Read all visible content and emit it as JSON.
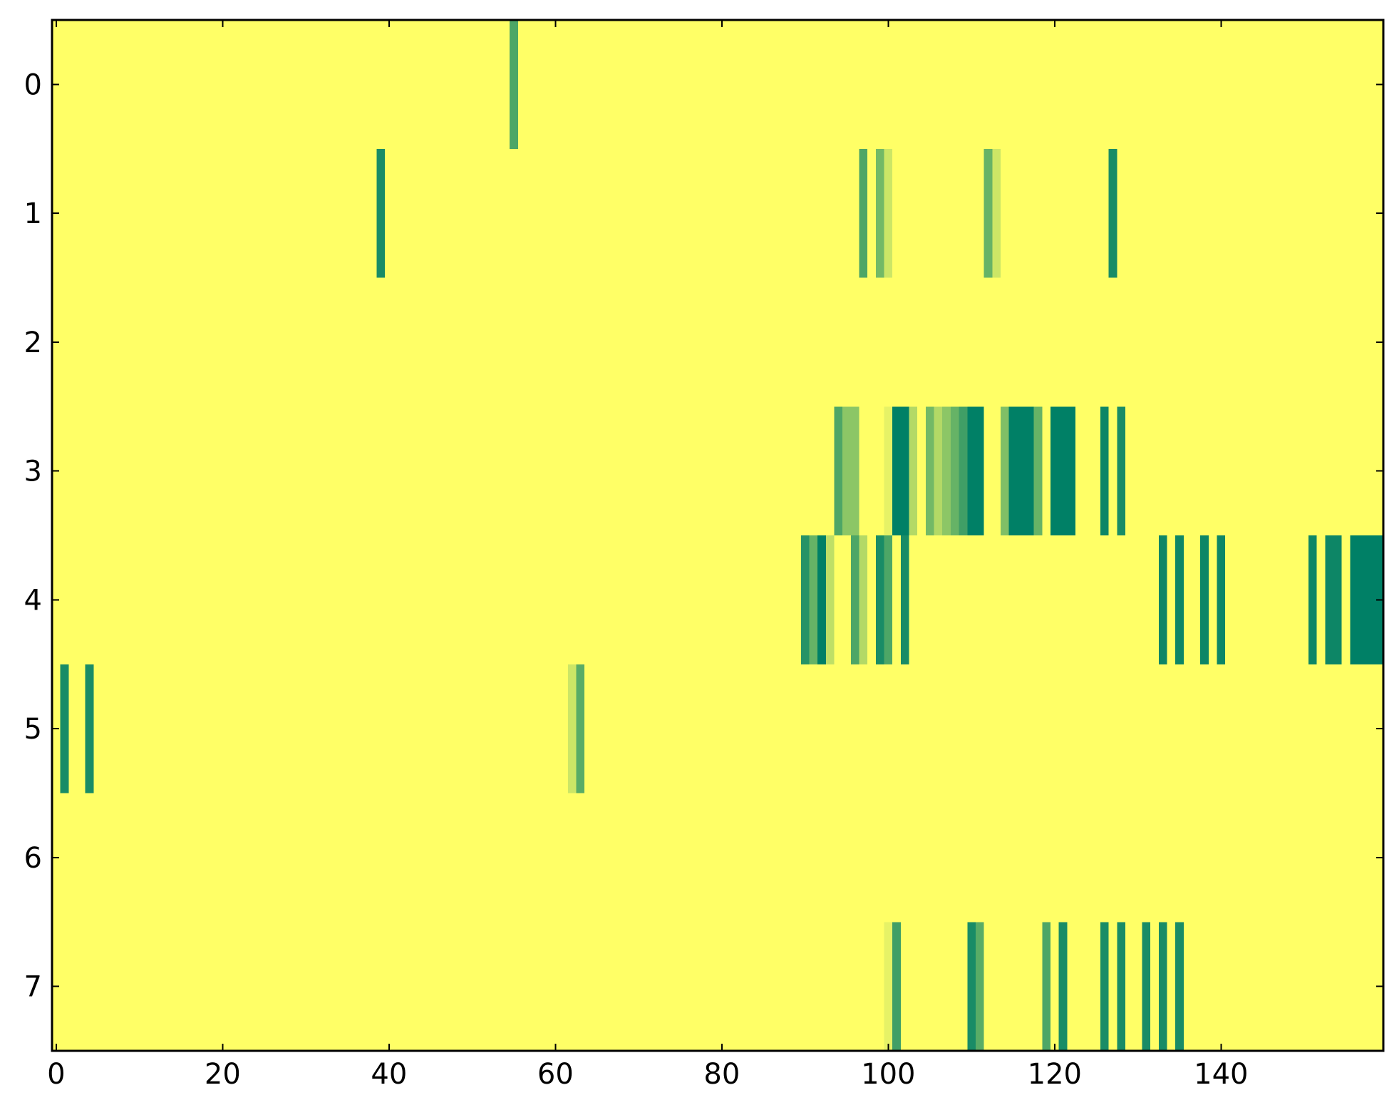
{
  "chart_data": {
    "type": "heatmap",
    "colormap": "summer_r",
    "xlim": [
      -0.5,
      159.5
    ],
    "ylim": [
      7.5,
      -0.5
    ],
    "xticks": [
      0,
      20,
      40,
      60,
      80,
      100,
      120,
      140
    ],
    "yticks": [
      0,
      1,
      2,
      3,
      4,
      5,
      6,
      7
    ],
    "z": [
      [
        0,
        0,
        0,
        0,
        0,
        0,
        0,
        0,
        0,
        0,
        0,
        0,
        0,
        0,
        0,
        0,
        0,
        0,
        0,
        0,
        0,
        0,
        0,
        0,
        0,
        0,
        0,
        0,
        0,
        0,
        0,
        0,
        0,
        0,
        0,
        0,
        0,
        0,
        0,
        0,
        0,
        0,
        0,
        0,
        0,
        0,
        0,
        0,
        0,
        0,
        0,
        0,
        0,
        0,
        0,
        0.7,
        0,
        0,
        0,
        0,
        0,
        0,
        0,
        0,
        0,
        0,
        0,
        0,
        0,
        0,
        0,
        0,
        0,
        0,
        0,
        0,
        0,
        0,
        0,
        0,
        0,
        0,
        0,
        0,
        0,
        0,
        0,
        0,
        0,
        0,
        0,
        0,
        0,
        0,
        0,
        0,
        0,
        0,
        0,
        0,
        0,
        0,
        0,
        0,
        0,
        0,
        0,
        0,
        0,
        0,
        0,
        0,
        0,
        0,
        0,
        0,
        0,
        0,
        0,
        0,
        0,
        0,
        0,
        0,
        0,
        0,
        0,
        0,
        0,
        0,
        0,
        0,
        0,
        0,
        0,
        0,
        0,
        0,
        0,
        0,
        0,
        0,
        0,
        0,
        0,
        0,
        0,
        0,
        0,
        0,
        0,
        0,
        0,
        0,
        0,
        0,
        0,
        0,
        0,
        0
      ],
      [
        0,
        0,
        0,
        0,
        0,
        0,
        0,
        0,
        0,
        0,
        0,
        0,
        0,
        0,
        0,
        0,
        0,
        0,
        0,
        0,
        0,
        0,
        0,
        0,
        0,
        0,
        0,
        0,
        0,
        0,
        0,
        0,
        0,
        0,
        0,
        0,
        0,
        0,
        0,
        0.9,
        0,
        0,
        0,
        0,
        0,
        0,
        0,
        0,
        0,
        0,
        0,
        0,
        0,
        0,
        0,
        0,
        0,
        0,
        0,
        0,
        0,
        0,
        0,
        0,
        0,
        0,
        0,
        0,
        0,
        0,
        0,
        0,
        0,
        0,
        0,
        0,
        0,
        0,
        0,
        0,
        0,
        0,
        0,
        0,
        0,
        0,
        0,
        0,
        0,
        0,
        0,
        0,
        0,
        0,
        0,
        0,
        0,
        0.7,
        0,
        0.55,
        0.2,
        0,
        0,
        0,
        0,
        0,
        0,
        0,
        0,
        0,
        0,
        0,
        0.6,
        0.2,
        0,
        0,
        0,
        0,
        0,
        0,
        0,
        0,
        0,
        0,
        0,
        0,
        0,
        0.9,
        0,
        0,
        0,
        0,
        0,
        0,
        0,
        0,
        0,
        0,
        0,
        0,
        0,
        0,
        0,
        0,
        0,
        0,
        0,
        0,
        0,
        0,
        0,
        0,
        0,
        0,
        0,
        0,
        0,
        0,
        0,
        0
      ],
      [
        0,
        0,
        0,
        0,
        0,
        0,
        0,
        0,
        0,
        0,
        0,
        0,
        0,
        0,
        0,
        0,
        0,
        0,
        0,
        0,
        0,
        0,
        0,
        0,
        0,
        0,
        0,
        0,
        0,
        0,
        0,
        0,
        0,
        0,
        0,
        0,
        0,
        0,
        0,
        0,
        0,
        0,
        0,
        0,
        0,
        0,
        0,
        0,
        0,
        0,
        0,
        0,
        0,
        0,
        0,
        0,
        0,
        0,
        0,
        0,
        0,
        0,
        0,
        0,
        0,
        0,
        0,
        0,
        0,
        0,
        0,
        0,
        0,
        0,
        0,
        0,
        0,
        0,
        0,
        0,
        0,
        0,
        0,
        0,
        0,
        0,
        0,
        0,
        0,
        0,
        0,
        0,
        0,
        0,
        0,
        0,
        0,
        0,
        0,
        0,
        0,
        0,
        0,
        0,
        0,
        0,
        0,
        0,
        0,
        0,
        0,
        0,
        0,
        0,
        0,
        0,
        0,
        0,
        0,
        0,
        0,
        0,
        0,
        0,
        0,
        0,
        0,
        0,
        0,
        0,
        0,
        0,
        0,
        0,
        0,
        0,
        0,
        0,
        0,
        0,
        0,
        0,
        0,
        0,
        0,
        0,
        0,
        0,
        0,
        0,
        0,
        0,
        0,
        0,
        0,
        0,
        0,
        0,
        0,
        0
      ],
      [
        0,
        0,
        0,
        0,
        0,
        0,
        0,
        0,
        0,
        0,
        0,
        0,
        0,
        0,
        0,
        0,
        0,
        0,
        0,
        0,
        0,
        0,
        0,
        0,
        0,
        0,
        0,
        0,
        0,
        0,
        0,
        0,
        0,
        0,
        0,
        0,
        0,
        0,
        0,
        0,
        0,
        0,
        0,
        0,
        0,
        0,
        0,
        0,
        0,
        0,
        0,
        0,
        0,
        0,
        0,
        0,
        0,
        0,
        0,
        0,
        0,
        0,
        0,
        0,
        0,
        0,
        0,
        0,
        0,
        0,
        0,
        0,
        0,
        0,
        0,
        0,
        0,
        0,
        0,
        0,
        0,
        0,
        0,
        0,
        0,
        0,
        0,
        0,
        0,
        0,
        0,
        0,
        0,
        0,
        0.7,
        0.45,
        0.45,
        0,
        0,
        0,
        0.1,
        1,
        1,
        0.3,
        0,
        0.55,
        0.3,
        0.45,
        0.6,
        0.75,
        1,
        1,
        0,
        0,
        0.5,
        1,
        1,
        1,
        0.6,
        0,
        1,
        1,
        1,
        0,
        0,
        0,
        0.95,
        0,
        0.9,
        0,
        0,
        0,
        0,
        0,
        0,
        0,
        0,
        0,
        0,
        0,
        0,
        0,
        0,
        0,
        0,
        0,
        0,
        0,
        0,
        0,
        0,
        0,
        0,
        0,
        0,
        0,
        0,
        0,
        0,
        0
      ],
      [
        0,
        0,
        0,
        0,
        0,
        0,
        0,
        0,
        0,
        0,
        0,
        0,
        0,
        0,
        0,
        0,
        0,
        0,
        0,
        0,
        0,
        0,
        0,
        0,
        0,
        0,
        0,
        0,
        0,
        0,
        0,
        0,
        0,
        0,
        0,
        0,
        0,
        0,
        0,
        0,
        0,
        0,
        0,
        0,
        0,
        0,
        0,
        0,
        0,
        0,
        0,
        0,
        0,
        0,
        0,
        0,
        0,
        0,
        0,
        0,
        0,
        0,
        0,
        0,
        0,
        0,
        0,
        0,
        0,
        0,
        0,
        0,
        0,
        0,
        0,
        0,
        0,
        0,
        0,
        0,
        0,
        0,
        0,
        0,
        0,
        0,
        0,
        0,
        0,
        0,
        0.85,
        0.6,
        1,
        0.25,
        0,
        0,
        0.7,
        0.3,
        0,
        0.9,
        0.7,
        0,
        0.9,
        0,
        0,
        0,
        0,
        0,
        0,
        0,
        0,
        0,
        0,
        0,
        0,
        0,
        0,
        0,
        0,
        0,
        0,
        0,
        0,
        0,
        0,
        0,
        0,
        0,
        0,
        0,
        0,
        0,
        0,
        0.95,
        0,
        0.95,
        0,
        0,
        0.95,
        0,
        0.95,
        0,
        0,
        0,
        0,
        0,
        0,
        0,
        0,
        0,
        0,
        0.95,
        0,
        0.95,
        0.95,
        0,
        1,
        1,
        1,
        1
      ],
      [
        0,
        0.9,
        0,
        0,
        0.9,
        0,
        0,
        0,
        0,
        0,
        0,
        0,
        0,
        0,
        0,
        0,
        0,
        0,
        0,
        0,
        0,
        0,
        0,
        0,
        0,
        0,
        0,
        0,
        0,
        0,
        0,
        0,
        0,
        0,
        0,
        0,
        0,
        0,
        0,
        0,
        0,
        0,
        0,
        0,
        0,
        0,
        0,
        0,
        0,
        0,
        0,
        0,
        0,
        0,
        0,
        0,
        0,
        0,
        0,
        0,
        0,
        0,
        0.2,
        0.65,
        0,
        0,
        0,
        0,
        0,
        0,
        0,
        0,
        0,
        0,
        0,
        0,
        0,
        0,
        0,
        0,
        0,
        0,
        0,
        0,
        0,
        0,
        0,
        0,
        0,
        0,
        0,
        0,
        0,
        0,
        0,
        0,
        0,
        0,
        0,
        0,
        0,
        0,
        0,
        0,
        0,
        0,
        0,
        0,
        0,
        0,
        0,
        0,
        0,
        0,
        0,
        0,
        0,
        0,
        0,
        0,
        0,
        0,
        0,
        0,
        0,
        0,
        0,
        0,
        0,
        0,
        0,
        0,
        0,
        0,
        0,
        0,
        0,
        0,
        0,
        0,
        0,
        0,
        0,
        0,
        0,
        0,
        0,
        0,
        0,
        0,
        0,
        0,
        0,
        0,
        0,
        0,
        0,
        0,
        0,
        0
      ],
      [
        0,
        0,
        0,
        0,
        0,
        0,
        0,
        0,
        0,
        0,
        0,
        0,
        0,
        0,
        0,
        0,
        0,
        0,
        0,
        0,
        0,
        0,
        0,
        0,
        0,
        0,
        0,
        0,
        0,
        0,
        0,
        0,
        0,
        0,
        0,
        0,
        0,
        0,
        0,
        0,
        0,
        0,
        0,
        0,
        0,
        0,
        0,
        0,
        0,
        0,
        0,
        0,
        0,
        0,
        0,
        0,
        0,
        0,
        0,
        0,
        0,
        0,
        0,
        0,
        0,
        0,
        0,
        0,
        0,
        0,
        0,
        0,
        0,
        0,
        0,
        0,
        0,
        0,
        0,
        0,
        0,
        0,
        0,
        0,
        0,
        0,
        0,
        0,
        0,
        0,
        0,
        0,
        0,
        0,
        0,
        0,
        0,
        0,
        0,
        0,
        0,
        0,
        0,
        0,
        0,
        0,
        0,
        0,
        0,
        0,
        0,
        0,
        0,
        0,
        0,
        0,
        0,
        0,
        0,
        0,
        0,
        0,
        0,
        0,
        0,
        0,
        0,
        0,
        0,
        0,
        0,
        0,
        0,
        0,
        0,
        0,
        0,
        0,
        0,
        0,
        0,
        0,
        0,
        0,
        0,
        0,
        0,
        0,
        0,
        0,
        0,
        0,
        0,
        0,
        0,
        0,
        0,
        0,
        0,
        0
      ],
      [
        0,
        0,
        0,
        0,
        0,
        0,
        0,
        0,
        0,
        0,
        0,
        0,
        0,
        0,
        0,
        0,
        0,
        0,
        0,
        0,
        0,
        0,
        0,
        0,
        0,
        0,
        0,
        0,
        0,
        0,
        0,
        0,
        0,
        0,
        0,
        0,
        0,
        0,
        0,
        0,
        0,
        0,
        0,
        0,
        0,
        0,
        0,
        0,
        0,
        0,
        0,
        0,
        0,
        0,
        0,
        0,
        0,
        0,
        0,
        0,
        0,
        0,
        0,
        0,
        0,
        0,
        0,
        0,
        0,
        0,
        0,
        0,
        0,
        0,
        0,
        0,
        0,
        0,
        0,
        0,
        0,
        0,
        0,
        0,
        0,
        0,
        0,
        0,
        0,
        0,
        0,
        0,
        0,
        0,
        0,
        0,
        0,
        0,
        0,
        0,
        0.1,
        0.75,
        0,
        0,
        0,
        0,
        0,
        0,
        0,
        0,
        0.9,
        0.65,
        0,
        0,
        0,
        0,
        0,
        0,
        0,
        0.7,
        0,
        0.9,
        0,
        0,
        0,
        0,
        0.9,
        0,
        0.9,
        0,
        0,
        0.9,
        0,
        0.9,
        0,
        0.9,
        0,
        0,
        0,
        0,
        0,
        0,
        0,
        0,
        0,
        0,
        0,
        0,
        0,
        0,
        0,
        0,
        0,
        0,
        0,
        0,
        0,
        0,
        0,
        0
      ]
    ]
  }
}
